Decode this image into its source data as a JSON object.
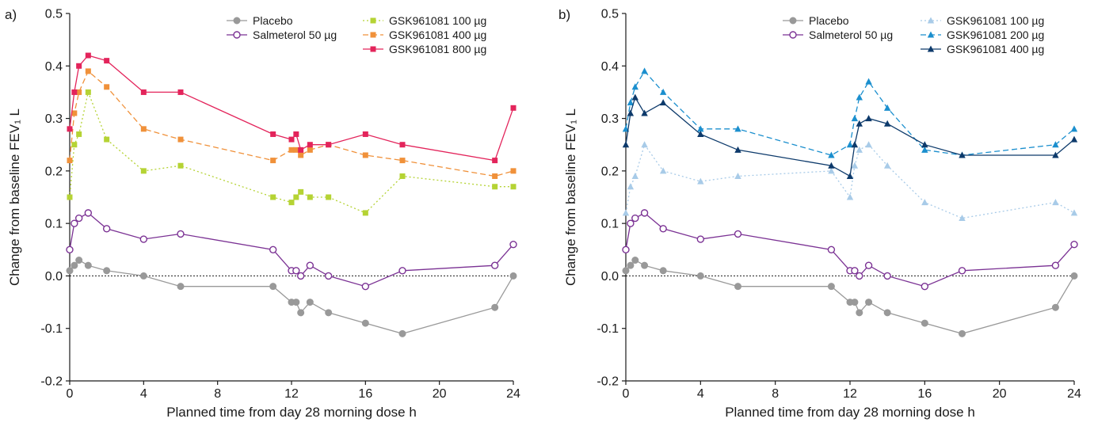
{
  "chart_data": [
    {
      "type": "line",
      "panel_label": "a)",
      "xlabel": "Planned time from day 28 morning dose h",
      "ylabel": "Change from baseline FEV₁ L",
      "xlim": [
        0,
        24
      ],
      "ylim": [
        -0.2,
        0.5
      ],
      "xticks": [
        "0",
        "4",
        "8",
        "12",
        "16",
        "20",
        "24"
      ],
      "yticks": [
        "-0.2",
        "-0.1",
        "0.0",
        "0.1",
        "0.2",
        "0.3",
        "0.4",
        "0.5"
      ],
      "reference_line": 0,
      "legend_position": "top-right",
      "series": [
        {
          "name": "Placebo",
          "color": "#999999",
          "marker": "circle-filled",
          "dash": "solid",
          "x": [
            0,
            0.25,
            0.5,
            1,
            2,
            4,
            6,
            11,
            12,
            12.25,
            12.5,
            13,
            14,
            16,
            18,
            23,
            24
          ],
          "y": [
            0.01,
            0.02,
            0.03,
            0.02,
            0.01,
            0.0,
            -0.02,
            -0.02,
            -0.05,
            -0.05,
            -0.07,
            -0.05,
            -0.07,
            -0.09,
            -0.11,
            -0.06,
            0.0
          ]
        },
        {
          "name": "Salmeterol 50 µg",
          "color": "#7b3294",
          "marker": "circle-open",
          "dash": "solid",
          "x": [
            0,
            0.25,
            0.5,
            1,
            2,
            4,
            6,
            11,
            12,
            12.25,
            12.5,
            13,
            14,
            16,
            18,
            23,
            24
          ],
          "y": [
            0.05,
            0.1,
            0.11,
            0.12,
            0.09,
            0.07,
            0.08,
            0.05,
            0.01,
            0.01,
            0.0,
            0.02,
            0.0,
            -0.02,
            0.01,
            0.02,
            0.06
          ]
        },
        {
          "name": "GSK961081 100 µg",
          "color": "#b5d334",
          "marker": "square",
          "dash": "dotted",
          "x": [
            0,
            0.25,
            0.5,
            1,
            2,
            4,
            6,
            11,
            12,
            12.25,
            12.5,
            13,
            14,
            16,
            18,
            23,
            24
          ],
          "y": [
            0.15,
            0.25,
            0.27,
            0.35,
            0.26,
            0.2,
            0.21,
            0.15,
            0.14,
            0.15,
            0.16,
            0.15,
            0.15,
            0.12,
            0.19,
            0.17,
            0.17
          ]
        },
        {
          "name": "GSK961081 400 µg",
          "color": "#f0913a",
          "marker": "square",
          "dash": "dashed",
          "x": [
            0,
            0.25,
            0.5,
            1,
            2,
            4,
            6,
            11,
            12,
            12.25,
            12.5,
            13,
            14,
            16,
            18,
            23,
            24
          ],
          "y": [
            0.22,
            0.31,
            0.35,
            0.39,
            0.36,
            0.28,
            0.26,
            0.22,
            0.24,
            0.24,
            0.23,
            0.24,
            0.25,
            0.23,
            0.22,
            0.19,
            0.2
          ]
        },
        {
          "name": "GSK961081 800 µg",
          "color": "#e3245b",
          "marker": "square",
          "dash": "solid",
          "x": [
            0,
            0.25,
            0.5,
            1,
            2,
            4,
            6,
            11,
            12,
            12.25,
            12.5,
            13,
            14,
            16,
            18,
            23,
            24
          ],
          "y": [
            0.28,
            0.35,
            0.4,
            0.42,
            0.41,
            0.35,
            0.35,
            0.27,
            0.26,
            0.27,
            0.24,
            0.25,
            0.25,
            0.27,
            0.25,
            0.22,
            0.32
          ]
        }
      ]
    },
    {
      "type": "line",
      "panel_label": "b)",
      "xlabel": "Planned time from day 28 morning dose h",
      "ylabel": "Change from baseline FEV₁ L",
      "xlim": [
        0,
        24
      ],
      "ylim": [
        -0.2,
        0.5
      ],
      "xticks": [
        "0",
        "4",
        "8",
        "12",
        "16",
        "20",
        "24"
      ],
      "yticks": [
        "-0.2",
        "-0.1",
        "0.0",
        "0.1",
        "0.2",
        "0.3",
        "0.4",
        "0.5"
      ],
      "reference_line": 0,
      "legend_position": "top-right",
      "series": [
        {
          "name": "Placebo",
          "color": "#999999",
          "marker": "circle-filled",
          "dash": "solid",
          "x": [
            0,
            0.25,
            0.5,
            1,
            2,
            4,
            6,
            11,
            12,
            12.25,
            12.5,
            13,
            14,
            16,
            18,
            23,
            24
          ],
          "y": [
            0.01,
            0.02,
            0.03,
            0.02,
            0.01,
            0.0,
            -0.02,
            -0.02,
            -0.05,
            -0.05,
            -0.07,
            -0.05,
            -0.07,
            -0.09,
            -0.11,
            -0.06,
            0.0
          ]
        },
        {
          "name": "Salmeterol 50 µg",
          "color": "#7b3294",
          "marker": "circle-open",
          "dash": "solid",
          "x": [
            0,
            0.25,
            0.5,
            1,
            2,
            4,
            6,
            11,
            12,
            12.25,
            12.5,
            13,
            14,
            16,
            18,
            23,
            24
          ],
          "y": [
            0.05,
            0.1,
            0.11,
            0.12,
            0.09,
            0.07,
            0.08,
            0.05,
            0.01,
            0.01,
            0.0,
            0.02,
            0.0,
            -0.02,
            0.01,
            0.02,
            0.06
          ]
        },
        {
          "name": "GSK961081 100 µg",
          "color": "#a8cbe8",
          "marker": "triangle",
          "dash": "dotted",
          "x": [
            0,
            0.25,
            0.5,
            1,
            2,
            4,
            6,
            11,
            12,
            12.25,
            12.5,
            13,
            14,
            16,
            18,
            23,
            24
          ],
          "y": [
            0.12,
            0.17,
            0.19,
            0.25,
            0.2,
            0.18,
            0.19,
            0.2,
            0.15,
            0.21,
            0.24,
            0.25,
            0.21,
            0.14,
            0.11,
            0.14,
            0.12
          ]
        },
        {
          "name": "GSK961081 200 µg",
          "color": "#1b8fce",
          "marker": "triangle",
          "dash": "dashed",
          "x": [
            0,
            0.25,
            0.5,
            1,
            2,
            4,
            6,
            11,
            12,
            12.25,
            12.5,
            13,
            14,
            16,
            18,
            23,
            24
          ],
          "y": [
            0.28,
            0.33,
            0.36,
            0.39,
            0.35,
            0.28,
            0.28,
            0.23,
            0.25,
            0.3,
            0.34,
            0.37,
            0.32,
            0.24,
            0.23,
            0.25,
            0.28
          ]
        },
        {
          "name": "GSK961081 400 µg",
          "color": "#0d3a6b",
          "marker": "triangle",
          "dash": "solid",
          "x": [
            0,
            0.25,
            0.5,
            1,
            2,
            4,
            6,
            11,
            12,
            12.25,
            12.5,
            13,
            14,
            16,
            18,
            23,
            24
          ],
          "y": [
            0.25,
            0.31,
            0.34,
            0.31,
            0.33,
            0.27,
            0.24,
            0.21,
            0.19,
            0.25,
            0.29,
            0.3,
            0.29,
            0.25,
            0.23,
            0.23,
            0.26
          ]
        }
      ]
    }
  ]
}
